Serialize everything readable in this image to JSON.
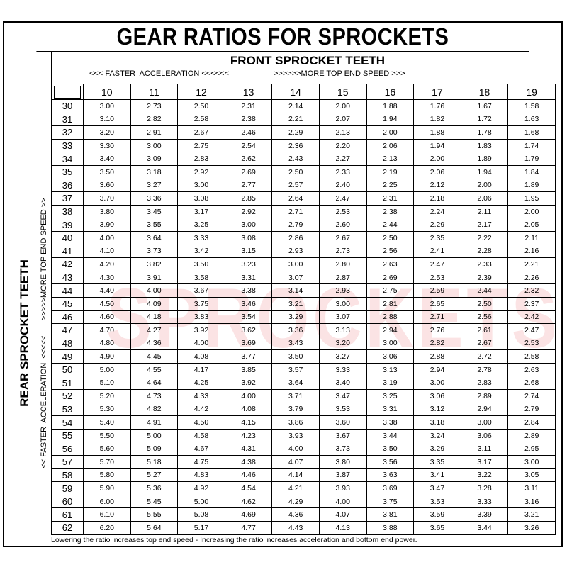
{
  "title": "GEAR RATIOS FOR SPROCKETS",
  "watermark": "SPROCKETS",
  "front": {
    "title": "FRONT SPROCKET TEETH",
    "left_hint": "<<< FASTER  ACCELERATION <<<<<<",
    "right_hint": ">>>>>>MORE TOP END SPEED >>>"
  },
  "rear": {
    "title": "REAR SPROCKET TEETH",
    "hint": "<< FASTER  ACCELERATION  <<<<<       >>>>>MORE TOP END SPEED >>"
  },
  "footer": "Lowering the ratio increases top end speed - Increasing the ratio increases acceleration and bottom end power.",
  "colors": {
    "watermark": "#e6505a",
    "border": "#000000"
  },
  "table": {
    "front_teeth": [
      "10",
      "11",
      "12",
      "13",
      "14",
      "15",
      "16",
      "17",
      "18",
      "19"
    ],
    "rows": [
      {
        "rear": "30",
        "ratios": [
          "3.00",
          "2.73",
          "2.50",
          "2.31",
          "2.14",
          "2.00",
          "1.88",
          "1.76",
          "1.67",
          "1.58"
        ]
      },
      {
        "rear": "31",
        "ratios": [
          "3.10",
          "2.82",
          "2.58",
          "2.38",
          "2.21",
          "2.07",
          "1.94",
          "1.82",
          "1.72",
          "1.63"
        ]
      },
      {
        "rear": "32",
        "ratios": [
          "3.20",
          "2.91",
          "2.67",
          "2.46",
          "2.29",
          "2.13",
          "2.00",
          "1.88",
          "1.78",
          "1.68"
        ]
      },
      {
        "rear": "33",
        "ratios": [
          "3.30",
          "3.00",
          "2.75",
          "2.54",
          "2.36",
          "2.20",
          "2.06",
          "1.94",
          "1.83",
          "1.74"
        ]
      },
      {
        "rear": "34",
        "ratios": [
          "3.40",
          "3.09",
          "2.83",
          "2.62",
          "2.43",
          "2.27",
          "2.13",
          "2.00",
          "1.89",
          "1.79"
        ]
      },
      {
        "rear": "35",
        "ratios": [
          "3.50",
          "3.18",
          "2.92",
          "2.69",
          "2.50",
          "2.33",
          "2.19",
          "2.06",
          "1.94",
          "1.84"
        ]
      },
      {
        "rear": "36",
        "ratios": [
          "3.60",
          "3.27",
          "3.00",
          "2.77",
          "2.57",
          "2.40",
          "2.25",
          "2.12",
          "2.00",
          "1.89"
        ]
      },
      {
        "rear": "37",
        "ratios": [
          "3.70",
          "3.36",
          "3.08",
          "2.85",
          "2.64",
          "2.47",
          "2.31",
          "2.18",
          "2.06",
          "1.95"
        ]
      },
      {
        "rear": "38",
        "ratios": [
          "3.80",
          "3.45",
          "3.17",
          "2.92",
          "2.71",
          "2.53",
          "2.38",
          "2.24",
          "2.11",
          "2.00"
        ]
      },
      {
        "rear": "39",
        "ratios": [
          "3.90",
          "3.55",
          "3.25",
          "3.00",
          "2.79",
          "2.60",
          "2.44",
          "2.29",
          "2.17",
          "2.05"
        ]
      },
      {
        "rear": "40",
        "ratios": [
          "4.00",
          "3.64",
          "3.33",
          "3.08",
          "2.86",
          "2.67",
          "2.50",
          "2.35",
          "2.22",
          "2.11"
        ]
      },
      {
        "rear": "41",
        "ratios": [
          "4.10",
          "3.73",
          "3.42",
          "3.15",
          "2.93",
          "2.73",
          "2.56",
          "2.41",
          "2.28",
          "2.16"
        ]
      },
      {
        "rear": "42",
        "ratios": [
          "4.20",
          "3.82",
          "3.50",
          "3.23",
          "3.00",
          "2.80",
          "2.63",
          "2.47",
          "2.33",
          "2.21"
        ]
      },
      {
        "rear": "43",
        "ratios": [
          "4.30",
          "3.91",
          "3.58",
          "3.31",
          "3.07",
          "2.87",
          "2.69",
          "2.53",
          "2.39",
          "2.26"
        ]
      },
      {
        "rear": "44",
        "ratios": [
          "4.40",
          "4.00",
          "3.67",
          "3.38",
          "3.14",
          "2.93",
          "2.75",
          "2.59",
          "2.44",
          "2.32"
        ]
      },
      {
        "rear": "45",
        "ratios": [
          "4.50",
          "4.09",
          "3.75",
          "3.46",
          "3.21",
          "3.00",
          "2.81",
          "2.65",
          "2.50",
          "2.37"
        ]
      },
      {
        "rear": "46",
        "ratios": [
          "4.60",
          "4.18",
          "3.83",
          "3.54",
          "3.29",
          "3.07",
          "2.88",
          "2.71",
          "2.56",
          "2.42"
        ]
      },
      {
        "rear": "47",
        "ratios": [
          "4.70",
          "4.27",
          "3.92",
          "3.62",
          "3.36",
          "3.13",
          "2.94",
          "2.76",
          "2.61",
          "2.47"
        ]
      },
      {
        "rear": "48",
        "ratios": [
          "4.80",
          "4.36",
          "4.00",
          "3.69",
          "3.43",
          "3.20",
          "3.00",
          "2.82",
          "2.67",
          "2.53"
        ]
      },
      {
        "rear": "49",
        "ratios": [
          "4.90",
          "4.45",
          "4.08",
          "3.77",
          "3.50",
          "3.27",
          "3.06",
          "2.88",
          "2.72",
          "2.58"
        ]
      },
      {
        "rear": "50",
        "ratios": [
          "5.00",
          "4.55",
          "4.17",
          "3.85",
          "3.57",
          "3.33",
          "3.13",
          "2.94",
          "2.78",
          "2.63"
        ]
      },
      {
        "rear": "51",
        "ratios": [
          "5.10",
          "4.64",
          "4.25",
          "3.92",
          "3.64",
          "3.40",
          "3.19",
          "3.00",
          "2.83",
          "2.68"
        ]
      },
      {
        "rear": "52",
        "ratios": [
          "5.20",
          "4.73",
          "4.33",
          "4.00",
          "3.71",
          "3.47",
          "3.25",
          "3.06",
          "2.89",
          "2.74"
        ]
      },
      {
        "rear": "53",
        "ratios": [
          "5.30",
          "4.82",
          "4.42",
          "4.08",
          "3.79",
          "3.53",
          "3.31",
          "3.12",
          "2.94",
          "2.79"
        ]
      },
      {
        "rear": "54",
        "ratios": [
          "5.40",
          "4.91",
          "4.50",
          "4.15",
          "3.86",
          "3.60",
          "3.38",
          "3.18",
          "3.00",
          "2.84"
        ]
      },
      {
        "rear": "55",
        "ratios": [
          "5.50",
          "5.00",
          "4.58",
          "4.23",
          "3.93",
          "3.67",
          "3.44",
          "3.24",
          "3.06",
          "2.89"
        ]
      },
      {
        "rear": "56",
        "ratios": [
          "5.60",
          "5.09",
          "4.67",
          "4.31",
          "4.00",
          "3.73",
          "3.50",
          "3.29",
          "3.11",
          "2.95"
        ]
      },
      {
        "rear": "57",
        "ratios": [
          "5.70",
          "5.18",
          "4.75",
          "4.38",
          "4.07",
          "3.80",
          "3.56",
          "3.35",
          "3.17",
          "3.00"
        ]
      },
      {
        "rear": "58",
        "ratios": [
          "5.80",
          "5.27",
          "4.83",
          "4.46",
          "4.14",
          "3.87",
          "3.63",
          "3.41",
          "3.22",
          "3.05"
        ]
      },
      {
        "rear": "59",
        "ratios": [
          "5.90",
          "5.36",
          "4.92",
          "4.54",
          "4.21",
          "3.93",
          "3.69",
          "3.47",
          "3.28",
          "3.11"
        ]
      },
      {
        "rear": "60",
        "ratios": [
          "6.00",
          "5.45",
          "5.00",
          "4.62",
          "4.29",
          "4.00",
          "3.75",
          "3.53",
          "3.33",
          "3.16"
        ]
      },
      {
        "rear": "61",
        "ratios": [
          "6.10",
          "5.55",
          "5.08",
          "4.69",
          "4.36",
          "4.07",
          "3.81",
          "3.59",
          "3.39",
          "3.21"
        ]
      },
      {
        "rear": "62",
        "ratios": [
          "6.20",
          "5.64",
          "5.17",
          "4.77",
          "4.43",
          "4.13",
          "3.88",
          "3.65",
          "3.44",
          "3.26"
        ]
      }
    ]
  }
}
